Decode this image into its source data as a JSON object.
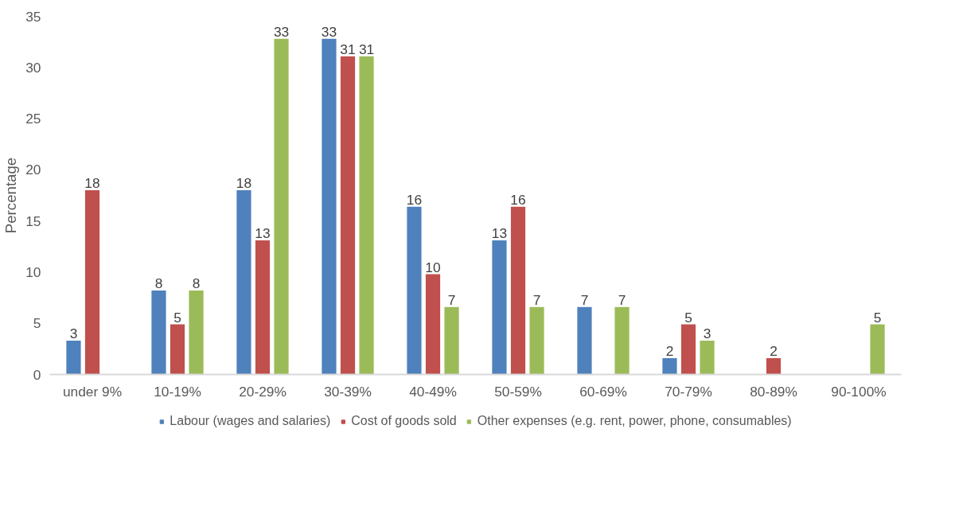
{
  "chart_data": {
    "type": "bar",
    "ylabel": "Percentage",
    "categories": [
      "under 9%",
      "10-19%",
      "20-29%",
      "30-39%",
      "40-49%",
      "50-59%",
      "60-69%",
      "70-79%",
      "80-89%",
      "90-100%"
    ],
    "series": [
      {
        "name": "Labour (wages and salaries)",
        "color": "#4f81bd",
        "values": [
          3.3,
          8.2,
          18.0,
          32.8,
          16.4,
          13.1,
          6.6,
          1.6,
          null,
          null
        ],
        "value_labels": [
          "3",
          "8",
          "18",
          "33",
          "16",
          "13",
          "7",
          "2",
          null,
          null
        ]
      },
      {
        "name": "Cost of goods sold",
        "color": "#c0504d",
        "values": [
          18.0,
          4.9,
          13.1,
          31.1,
          9.8,
          16.4,
          null,
          4.9,
          1.6,
          null
        ],
        "value_labels": [
          "18",
          "5",
          "13",
          "31",
          "10",
          "16",
          null,
          "5",
          "2",
          null
        ]
      },
      {
        "name": "Other expenses (e.g. rent, power, phone, consumables)",
        "color": "#9bbb59",
        "values": [
          null,
          8.2,
          32.8,
          31.1,
          6.6,
          6.6,
          6.6,
          3.3,
          null,
          4.9
        ],
        "value_labels": [
          null,
          "8",
          "33",
          "31",
          "7",
          "7",
          "7",
          "3",
          null,
          "5"
        ]
      }
    ],
    "ylim": [
      0,
      35
    ],
    "yticks": [
      0,
      5,
      10,
      15,
      20,
      25,
      30,
      35
    ],
    "grid": false,
    "legend": "bottom"
  }
}
